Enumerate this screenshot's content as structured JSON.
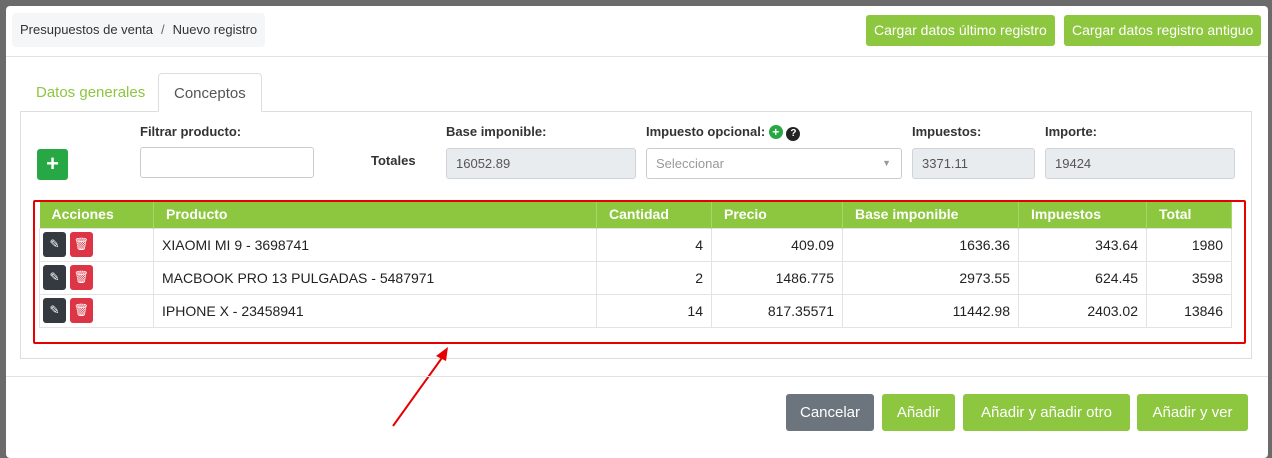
{
  "breadcrumb": {
    "items": [
      "Presupuestos de venta",
      "Nuevo registro"
    ]
  },
  "header": {
    "load_last": "Cargar datos último registro",
    "load_old": "Cargar datos registro antiguo"
  },
  "tabs": [
    {
      "label": "Datos generales"
    },
    {
      "label": "Conceptos"
    }
  ],
  "filters": {
    "filter_label": "Filtrar producto:",
    "filter_value": "",
    "totals_label": "Totales",
    "base_label": "Base imponible:",
    "base_value": "16052.89",
    "tax_opt_label": "Impuesto opcional:",
    "tax_opt_placeholder": "Seleccionar",
    "taxes_label": "Impuestos:",
    "taxes_value": "3371.11",
    "amount_label": "Importe:",
    "amount_value": "19424"
  },
  "table": {
    "headers": [
      "Acciones",
      "Producto",
      "Cantidad",
      "Precio",
      "Base imponible",
      "Impuestos",
      "Total"
    ],
    "rows": [
      [
        "XIAOMI MI 9 - 3698741",
        "4",
        "409.09",
        "1636.36",
        "343.64",
        "1980"
      ],
      [
        "MACBOOK PRO 13 PULGADAS - 5487971",
        "2",
        "1486.775",
        "2973.55",
        "624.45",
        "3598"
      ],
      [
        "IPHONE X - 23458941",
        "14",
        "817.35571",
        "11442.98",
        "2403.02",
        "13846"
      ]
    ]
  },
  "footer": {
    "cancel": "Cancelar",
    "add": "Añadir",
    "add_another": "Añadir y añadir otro",
    "add_view": "Añadir y ver"
  },
  "colors": {
    "accent": "#8dc63f",
    "highlight": "#e60000"
  }
}
